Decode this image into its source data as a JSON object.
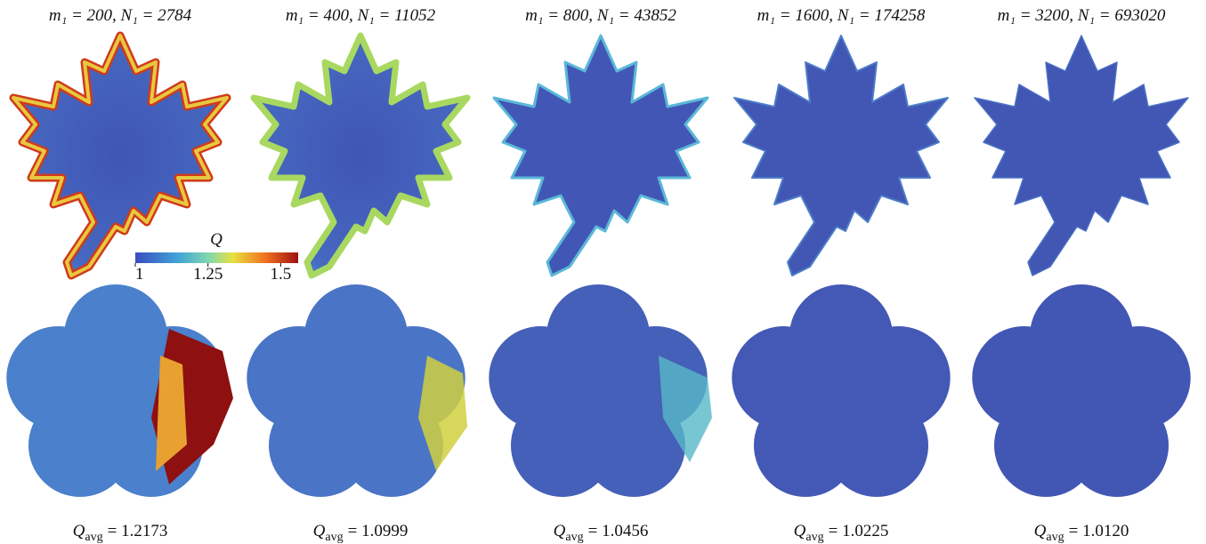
{
  "columns": [
    {
      "title": "m₁ = 200, N₁ = 2784",
      "q": {
        "symbol": "Q",
        "subscript": "avg",
        "rest": "= 1.2173"
      }
    },
    {
      "title": "m₁ = 400, N₁ = 11052",
      "q": {
        "symbol": "Q",
        "subscript": "avg",
        "rest": "= 1.0999"
      }
    },
    {
      "title": "m₁ = 800, N₁ = 43852",
      "q": {
        "symbol": "Q",
        "subscript": "avg",
        "rest": "= 1.0456"
      }
    },
    {
      "title": "m₁ = 1600, N₁ = 174258",
      "q": {
        "symbol": "Q",
        "subscript": "avg",
        "rest": "= 1.0225"
      }
    },
    {
      "title": "m₁ = 3200, N₁ = 693020",
      "q": {
        "symbol": "Q",
        "subscript": "avg",
        "rest": "= 1.0120"
      }
    }
  ],
  "colorbar": {
    "label": "Q",
    "range": [
      1,
      1.56
    ],
    "ticks": [
      1,
      1.25,
      1.5
    ]
  }
}
